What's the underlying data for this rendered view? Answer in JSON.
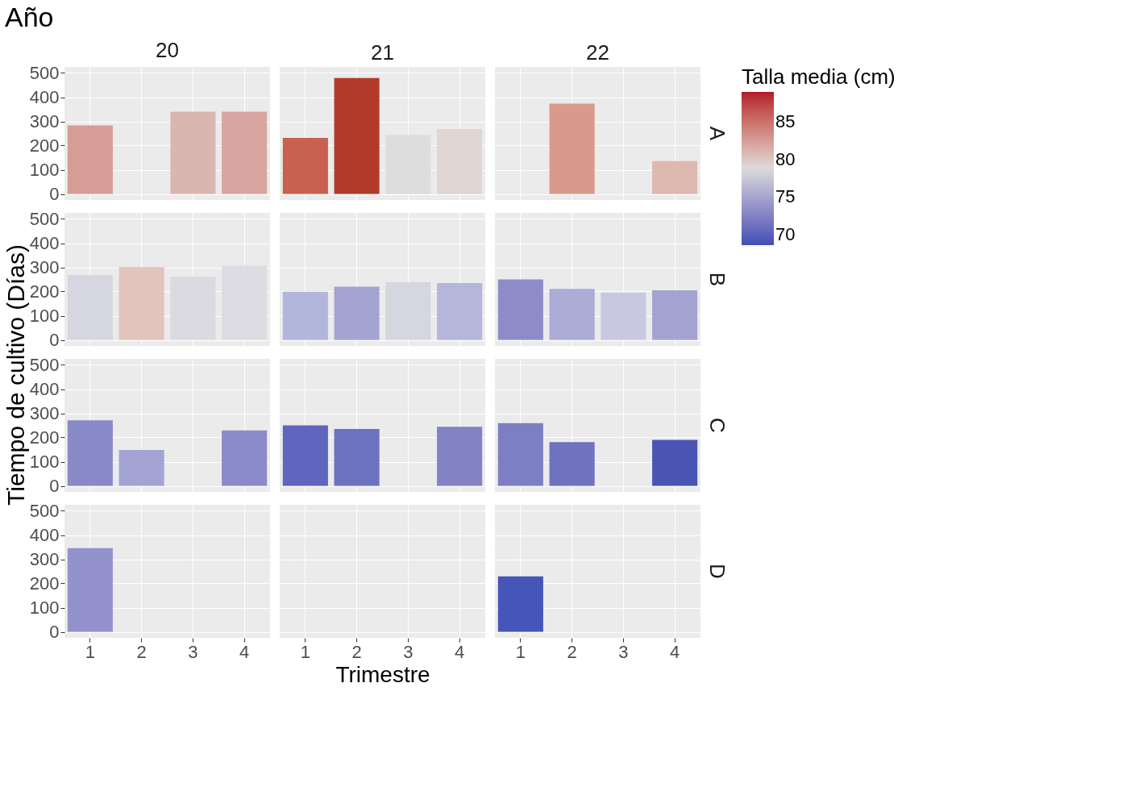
{
  "chart_data": [
    {
      "type": "bar",
      "title": "20",
      "annotations": [
        "Año"
      ],
      "ylabel": "Tiempo de cultivo (Días)",
      "clabel": "Talla media (cm)",
      "cticks": [
        70,
        75,
        80,
        85
      ],
      "categories": [
        "1",
        "2",
        "3",
        "4"
      ],
      "values": [
        283,
        null,
        340,
        340
      ],
      "cvalues": [
        82.5,
        null,
        81,
        82
      ],
      "clim": [
        68.6,
        89
      ],
      "ylim": [
        -25,
        525
      ],
      "yticks": [
        0,
        100,
        200,
        300,
        400,
        500
      ],
      "grid": true,
      "tick_labels": "y"
    },
    {
      "type": "bar",
      "title": "21",
      "categories": [
        "1",
        "2",
        "3",
        "4"
      ],
      "values": [
        232,
        479,
        244,
        268
      ],
      "colors": [
        "#c96150",
        "#b33a2a",
        "#dddddd",
        "#e0d6d4"
      ],
      "ylim": [
        -25,
        525
      ],
      "yticks": [
        0,
        100,
        200,
        300,
        400,
        500
      ],
      "grid": true,
      "tick_labels": false
    },
    {
      "type": "bar",
      "title": "22",
      "y2label": "A",
      "categories": [
        "1",
        "2",
        "3",
        "4"
      ],
      "values": [
        null,
        373,
        null,
        136
      ],
      "colors": [
        null,
        "#d99a8c",
        null,
        "#deb9b0"
      ],
      "ylim": [
        -25,
        525
      ],
      "yticks": [
        0,
        100,
        200,
        300,
        400,
        500
      ],
      "grid": true,
      "tick_labels": false
    },
    {
      "type": "bar",
      "categories": [
        "1",
        "2",
        "3",
        "4"
      ],
      "values": [
        268,
        301,
        262,
        307
      ],
      "colors": [
        "#d6d6e0",
        "#e2c4bd",
        "#dadae0",
        "#dcdce2"
      ],
      "ylim": [
        -25,
        525
      ],
      "yticks": [
        0,
        100,
        200,
        300,
        400,
        500
      ],
      "grid": true,
      "tick_labels": "y"
    },
    {
      "type": "bar",
      "categories": [
        "1",
        "2",
        "3",
        "4"
      ],
      "values": [
        199,
        220,
        238,
        235
      ],
      "colors": [
        "#b3b6dc",
        "#a3a4d2",
        "#d5d6e0",
        "#b4b7da"
      ],
      "ylim": [
        -25,
        525
      ],
      "yticks": [
        0,
        100,
        200,
        300,
        400,
        500
      ],
      "grid": true,
      "tick_labels": false
    },
    {
      "type": "bar",
      "y2label": "B",
      "categories": [
        "1",
        "2",
        "3",
        "4"
      ],
      "values": [
        250,
        211,
        196,
        205
      ],
      "colors": [
        "#8e8cc8",
        "#abacd6",
        "#c8c9e0",
        "#a3a3d2"
      ],
      "ylim": [
        -25,
        525
      ],
      "yticks": [
        0,
        100,
        200,
        300,
        400,
        500
      ],
      "grid": true,
      "tick_labels": false
    },
    {
      "type": "bar",
      "categories": [
        "1",
        "2",
        "3",
        "4"
      ],
      "values": [
        271,
        148,
        null,
        229
      ],
      "colors": [
        "#8a89c8",
        "#a3a4d4",
        null,
        "#8b8bca"
      ],
      "ylim": [
        -25,
        525
      ],
      "yticks": [
        0,
        100,
        200,
        300,
        400,
        500
      ],
      "grid": true,
      "tick_labels": "y"
    },
    {
      "type": "bar",
      "categories": [
        "1",
        "2",
        "3",
        "4"
      ],
      "values": [
        250,
        235,
        null,
        244
      ],
      "colors": [
        "#5f66bd",
        "#6d72c0",
        null,
        "#8282c4"
      ],
      "ylim": [
        -25,
        525
      ],
      "yticks": [
        0,
        100,
        200,
        300,
        400,
        500
      ],
      "grid": true,
      "tick_labels": false
    },
    {
      "type": "bar",
      "y2label": "C",
      "categories": [
        "1",
        "2",
        "3",
        "4"
      ],
      "values": [
        259,
        181,
        null,
        190
      ],
      "colors": [
        "#7d7fc4",
        "#7072c0",
        null,
        "#4a55b3"
      ],
      "ylim": [
        -25,
        525
      ],
      "yticks": [
        0,
        100,
        200,
        300,
        400,
        500
      ],
      "grid": true,
      "tick_labels": false
    },
    {
      "type": "bar",
      "categories": [
        "1",
        "2",
        "3",
        "4"
      ],
      "values": [
        346,
        null,
        null,
        null
      ],
      "colors": [
        "#9392cc",
        null,
        null,
        null
      ],
      "ylim": [
        -25,
        525
      ],
      "yticks": [
        0,
        100,
        200,
        300,
        400,
        500
      ],
      "grid": true
    },
    {
      "type": "bar",
      "xlabel": "Trimestre",
      "categories": [
        "1",
        "2",
        "3",
        "4"
      ],
      "values": [
        null,
        null,
        null,
        null
      ],
      "ylim": [
        -25,
        525
      ],
      "yticks": [
        0,
        100,
        200,
        300,
        400,
        500
      ],
      "grid": true,
      "tick_labels": "x"
    },
    {
      "type": "bar",
      "y2label": "D",
      "categories": [
        "1",
        "2",
        "3",
        "4"
      ],
      "values": [
        229,
        null,
        null,
        null
      ],
      "colors": [
        "#4656b8",
        null,
        null,
        null
      ],
      "ylim": [
        -25,
        525
      ],
      "yticks": [
        0,
        100,
        200,
        300,
        400,
        500
      ],
      "grid": true,
      "tick_labels": "x"
    }
  ]
}
